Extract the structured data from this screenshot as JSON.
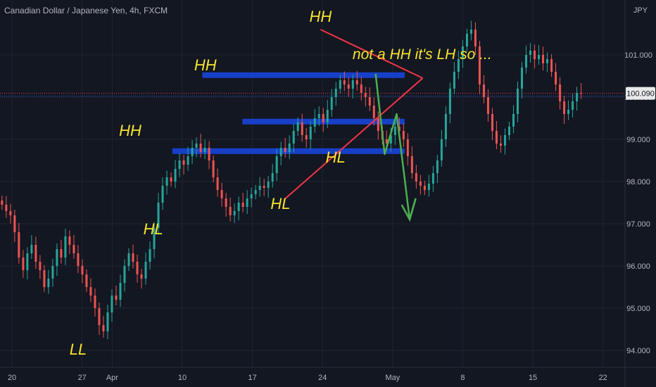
{
  "header": {
    "title": "Canadian Dollar / Japanese Yen, 4h, FXCM"
  },
  "price_scale": {
    "currency": "JPY",
    "current_price": "100.090"
  },
  "colors": {
    "background": "#131722",
    "grid": "#1f2430",
    "up_candle": "#26a69a",
    "down_candle": "#ef5350",
    "zone": "#1740c8",
    "trendline": "#f23645",
    "projection": "#4caf50",
    "label": "#f7e42c",
    "price_tag": "#131722"
  },
  "chart_data": {
    "type": "candlestick",
    "ylim": [
      93.6,
      102.3
    ],
    "y_ticks": [
      94.0,
      95.0,
      96.0,
      97.0,
      98.0,
      99.0,
      100.0,
      101.0
    ],
    "y_tick_labels": [
      "94.000",
      "95.000",
      "96.000",
      "97.000",
      "98.000",
      "99.000",
      "100.000",
      "101.000"
    ],
    "x_ticks": [
      "20",
      "27",
      "Apr",
      "10",
      "17",
      "24",
      "May",
      "8",
      "15",
      "22"
    ],
    "x_domain_days": [
      -2.2,
      20.2
    ],
    "x_tick_positions_days": [
      -1.0,
      6.0,
      9.0,
      16.0,
      23.0,
      30.0,
      37.0,
      44.0,
      51.0,
      58.0
    ],
    "swing_points": [
      {
        "label": "LL",
        "x": 5.6,
        "price": 94.3
      },
      {
        "label": "HH",
        "x": 10.8,
        "price": 98.95
      },
      {
        "label": "HL",
        "x": 13.1,
        "price": 97.15
      },
      {
        "label": "HH",
        "x": 18.3,
        "price": 100.5
      },
      {
        "label": "HL",
        "x": 25.8,
        "price": 97.75
      },
      {
        "label": "HH",
        "x": 29.8,
        "price": 101.65
      },
      {
        "label": "HL",
        "x": 31.3,
        "price": 98.85
      }
    ],
    "annotations": [
      {
        "text": "not a HH it's LH so ...",
        "x": 33.0,
        "price": 100.9
      }
    ],
    "zones": [
      {
        "x_start": 18.0,
        "x_end": 38.2,
        "price": 100.52
      },
      {
        "x_start": 22.0,
        "x_end": 38.2,
        "price": 99.42
      },
      {
        "x_start": 15.0,
        "x_end": 38.2,
        "price": 98.72
      }
    ],
    "trendlines": [
      {
        "from": {
          "x": 29.8,
          "price": 101.6
        },
        "to": {
          "x": 40.0,
          "price": 100.45
        }
      },
      {
        "from": {
          "x": 26.3,
          "price": 97.6
        },
        "to": {
          "x": 40.0,
          "price": 100.45
        }
      }
    ],
    "projection": [
      {
        "x": 35.3,
        "price": 100.55
      },
      {
        "x": 36.2,
        "price": 98.65
      },
      {
        "x": 37.4,
        "price": 99.6
      },
      {
        "x": 38.7,
        "price": 97.1
      },
      {
        "x": 39.3,
        "price": 97.6
      }
    ],
    "current_price_line": 100.09,
    "closes": [
      97.45,
      97.3,
      97.2,
      96.8,
      96.2,
      95.9,
      96.3,
      96.5,
      96.1,
      95.9,
      95.5,
      95.7,
      96.0,
      96.4,
      96.2,
      96.7,
      96.5,
      96.3,
      96.0,
      95.8,
      95.5,
      95.3,
      95.0,
      94.6,
      94.45,
      94.9,
      95.3,
      95.2,
      95.6,
      96.0,
      96.3,
      96.1,
      95.8,
      95.7,
      96.1,
      96.4,
      96.9,
      97.5,
      97.9,
      98.1,
      98.0,
      98.3,
      98.5,
      98.4,
      98.6,
      98.8,
      98.9,
      98.7,
      98.8,
      98.5,
      98.1,
      97.8,
      97.6,
      97.4,
      97.2,
      97.3,
      97.5,
      97.4,
      97.6,
      97.7,
      97.8,
      97.9,
      97.85,
      98.0,
      98.2,
      98.6,
      98.8,
      98.7,
      98.9,
      99.2,
      99.4,
      99.1,
      99.0,
      99.3,
      99.5,
      99.6,
      99.4,
      99.7,
      100.0,
      100.2,
      100.4,
      100.3,
      100.2,
      100.4,
      100.3,
      100.1,
      100.0,
      99.8,
      99.5,
      99.2,
      99.0,
      98.9,
      99.1,
      99.3,
      99.2,
      99.0,
      98.6,
      98.2,
      98.0,
      97.9,
      97.8,
      97.95,
      98.2,
      98.5,
      99.0,
      99.6,
      100.2,
      100.6,
      100.9,
      101.2,
      101.5,
      101.6,
      101.2,
      100.3,
      100.0,
      99.6,
      99.2,
      98.9,
      98.85,
      99.1,
      99.3,
      99.6,
      100.2,
      100.7,
      101.0,
      101.1,
      100.9,
      101.0,
      100.8,
      100.9,
      100.6,
      100.3,
      99.9,
      99.6,
      99.7,
      99.9,
      100.1,
      100.09
    ],
    "candle_start_day": -2.0,
    "candle_step_days": 0.422
  }
}
